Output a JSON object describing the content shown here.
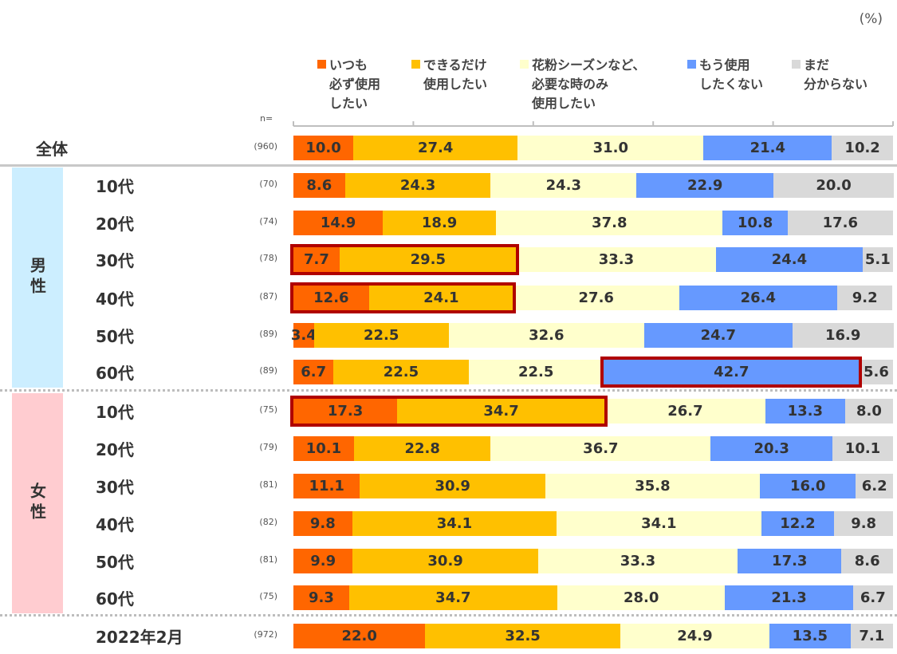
{
  "chart_data": {
    "type": "bar",
    "orientation": "horizontal-stacked-100",
    "unit_label": "(%)",
    "n_header": "n=",
    "xlim": [
      0,
      100
    ],
    "legend_placement": "top",
    "series": [
      {
        "name": "いつも\n必ず使用\nしたい",
        "color": "#ff6600"
      },
      {
        "name": "できるだけ\n使用したい",
        "color": "#ffc000"
      },
      {
        "name": "花粉シーズンなど、\n必要な時のみ\n使用したい",
        "color": "#ffffcc"
      },
      {
        "name": "もう使用\nしたくない",
        "color": "#6699ff"
      },
      {
        "name": "まだ\n分からない",
        "color": "#d9d9d9"
      }
    ],
    "groups": [
      {
        "label": "男性",
        "color": "#cceeff",
        "rows": [
          1,
          6
        ]
      },
      {
        "label": "女性",
        "color": "#ffccd0",
        "rows": [
          7,
          12
        ]
      }
    ],
    "rows": [
      {
        "label": "全体",
        "n": "(960)",
        "values": [
          10.0,
          27.4,
          31.0,
          21.4,
          10.2
        ]
      },
      {
        "label": "10代",
        "n": "(70)",
        "values": [
          8.6,
          24.3,
          24.3,
          22.9,
          20.0
        ]
      },
      {
        "label": "20代",
        "n": "(74)",
        "values": [
          14.9,
          18.9,
          37.8,
          10.8,
          17.6
        ]
      },
      {
        "label": "30代",
        "n": "(78)",
        "values": [
          7.7,
          29.5,
          33.3,
          24.4,
          5.1
        ]
      },
      {
        "label": "40代",
        "n": "(87)",
        "values": [
          12.6,
          24.1,
          27.6,
          26.4,
          9.2
        ]
      },
      {
        "label": "50代",
        "n": "(89)",
        "values": [
          3.4,
          22.5,
          32.6,
          24.7,
          16.9
        ]
      },
      {
        "label": "60代",
        "n": "(89)",
        "values": [
          6.7,
          22.5,
          22.5,
          42.7,
          5.6
        ]
      },
      {
        "label": "10代",
        "n": "(75)",
        "values": [
          17.3,
          34.7,
          26.7,
          13.3,
          8.0
        ]
      },
      {
        "label": "20代",
        "n": "(79)",
        "values": [
          10.1,
          22.8,
          36.7,
          20.3,
          10.1
        ]
      },
      {
        "label": "30代",
        "n": "(81)",
        "values": [
          11.1,
          30.9,
          35.8,
          16.0,
          6.2
        ]
      },
      {
        "label": "40代",
        "n": "(82)",
        "values": [
          9.8,
          34.1,
          34.1,
          12.2,
          9.8
        ]
      },
      {
        "label": "50代",
        "n": "(81)",
        "values": [
          9.9,
          30.9,
          33.3,
          17.3,
          8.6
        ]
      },
      {
        "label": "60代",
        "n": "(75)",
        "values": [
          9.3,
          34.7,
          28.0,
          21.3,
          6.7
        ]
      },
      {
        "label": "2022年2月",
        "n": "(972)",
        "values": [
          22.0,
          32.5,
          24.9,
          13.5,
          7.1
        ]
      }
    ],
    "highlights": [
      {
        "row": 3,
        "from_series": 0,
        "to_series": 1
      },
      {
        "row": 4,
        "from_series": 0,
        "to_series": 1
      },
      {
        "row": 6,
        "from_series": 3,
        "to_series": 3
      },
      {
        "row": 7,
        "from_series": 0,
        "to_series": 1
      }
    ],
    "highlight_color": "#b00000",
    "axis_ticks": [
      0,
      20,
      40,
      60,
      80,
      100
    ]
  }
}
